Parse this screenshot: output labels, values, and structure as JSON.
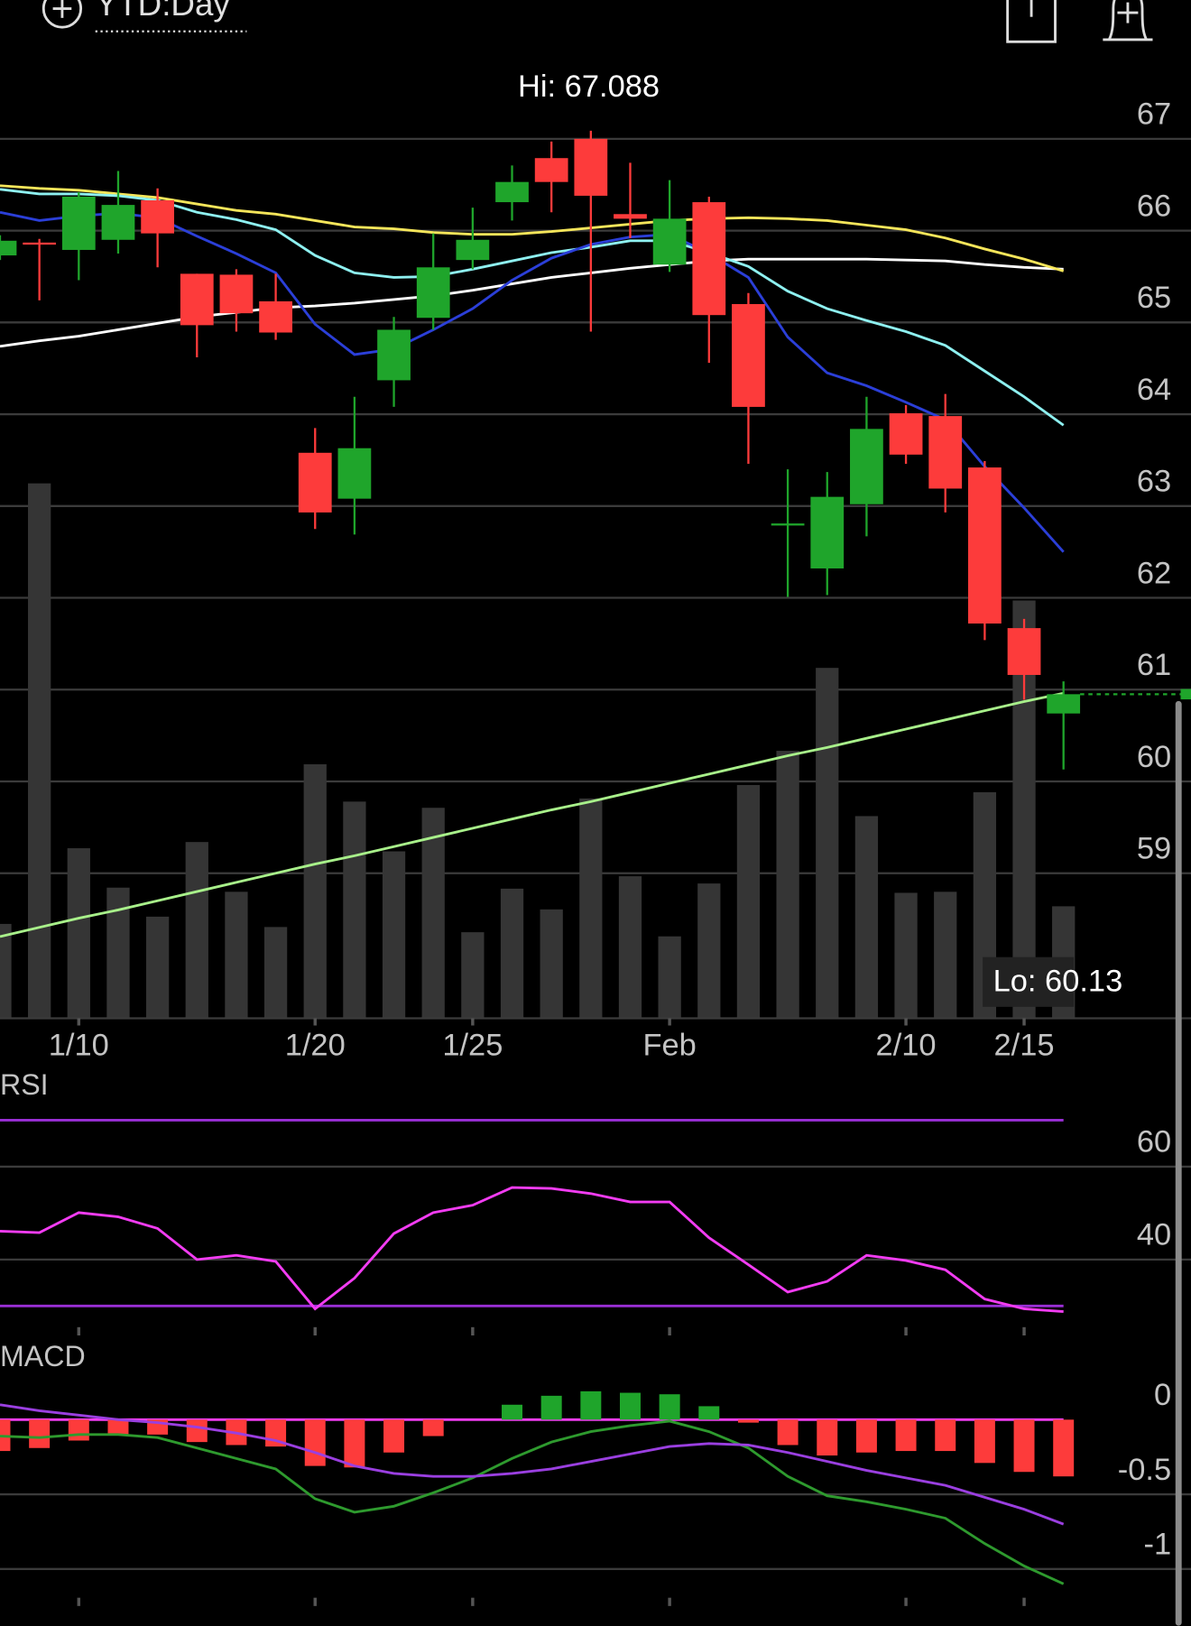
{
  "header": {
    "range": "YTD:Day"
  },
  "chart_data": [
    {
      "type": "candlestick",
      "categories": [
        null,
        null,
        "1/10",
        null,
        null,
        null,
        null,
        null,
        "1/20",
        null,
        null,
        null,
        "1/25",
        null,
        null,
        null,
        null,
        "Feb",
        null,
        null,
        null,
        null,
        null,
        "2/10",
        null,
        null,
        "2/15",
        null
      ],
      "open": [
        65.73,
        65.87,
        65.79,
        65.9,
        66.33,
        65.53,
        65.52,
        65.23,
        63.58,
        63.08,
        64.37,
        65.05,
        65.68,
        66.31,
        66.79,
        67.0,
        66.18,
        65.63,
        66.31,
        65.2,
        62.79,
        62.32,
        63.02,
        64.01,
        63.98,
        63.42,
        61.67,
        60.74
      ],
      "high": [
        65.95,
        65.91,
        66.42,
        66.65,
        66.46,
        65.53,
        65.58,
        65.53,
        63.85,
        64.19,
        65.06,
        65.97,
        66.25,
        66.71,
        66.97,
        67.088,
        66.74,
        66.55,
        66.37,
        65.32,
        63.4,
        63.37,
        64.19,
        64.1,
        64.22,
        63.49,
        61.77,
        61.09
      ],
      "low": [
        65.68,
        65.24,
        65.46,
        65.75,
        65.6,
        64.62,
        64.9,
        64.81,
        62.75,
        62.69,
        64.08,
        64.92,
        65.58,
        66.11,
        66.2,
        64.9,
        65.92,
        65.55,
        64.56,
        63.46,
        62.01,
        62.03,
        62.67,
        63.46,
        62.93,
        61.54,
        60.89,
        60.13
      ],
      "close": [
        65.89,
        65.86,
        66.37,
        66.28,
        65.97,
        64.97,
        65.1,
        64.89,
        62.93,
        63.63,
        64.92,
        65.6,
        65.9,
        66.53,
        66.53,
        66.38,
        66.13,
        66.13,
        65.08,
        64.08,
        62.81,
        63.1,
        63.84,
        63.56,
        63.19,
        61.72,
        61.16,
        60.95
      ],
      "up_color": "#1fa52b",
      "down_color": "#fd3b3b",
      "volume": [
        91,
        516,
        164,
        126,
        98,
        170,
        122,
        88,
        245,
        209,
        161,
        203,
        83,
        125,
        105,
        212,
        137,
        79,
        130,
        225,
        258,
        338,
        195,
        121,
        122,
        218,
        403,
        108
      ],
      "volume_color": "#353535",
      "vlim": [
        0,
        882
      ],
      "overlays": [
        {
          "color": "#ffffff",
          "values": [
            64.74,
            64.8,
            64.85,
            64.92,
            64.99,
            65.06,
            65.11,
            65.16,
            65.18,
            65.21,
            65.25,
            65.29,
            65.35,
            65.42,
            65.49,
            65.54,
            65.59,
            65.63,
            65.67,
            65.69,
            65.69,
            65.69,
            65.69,
            65.68,
            65.67,
            65.63,
            65.6,
            65.58
          ]
        },
        {
          "color": "#f5e55a",
          "values": [
            66.49,
            66.46,
            66.44,
            66.4,
            66.36,
            66.29,
            66.22,
            66.18,
            66.11,
            66.04,
            66.02,
            65.98,
            65.96,
            65.96,
            65.99,
            66.03,
            66.07,
            66.11,
            66.13,
            66.14,
            66.13,
            66.11,
            66.06,
            66.01,
            65.92,
            65.8,
            65.69,
            65.56
          ]
        },
        {
          "color": "#8ef0f0",
          "values": [
            66.45,
            66.4,
            66.4,
            66.38,
            66.33,
            66.2,
            66.12,
            66.01,
            65.73,
            65.54,
            65.49,
            65.5,
            65.58,
            65.67,
            65.76,
            65.82,
            65.89,
            65.89,
            65.76,
            65.61,
            65.34,
            65.15,
            65.02,
            64.9,
            64.75,
            64.47,
            64.19,
            63.88
          ]
        },
        {
          "color": "#2b3fd8",
          "values": [
            66.2,
            66.11,
            66.16,
            66.19,
            66.14,
            65.94,
            65.75,
            65.54,
            64.98,
            64.65,
            64.71,
            64.92,
            65.15,
            65.46,
            65.7,
            65.85,
            65.93,
            65.96,
            65.75,
            65.49,
            64.84,
            64.45,
            64.31,
            64.13,
            63.94,
            63.43,
            62.98,
            62.5
          ]
        },
        {
          "color": "#a8f08a",
          "values": [
            58.31,
            58.41,
            58.51,
            58.6,
            58.7,
            58.8,
            58.9,
            59.0,
            59.1,
            59.19,
            59.29,
            59.39,
            59.49,
            59.59,
            59.69,
            59.78,
            59.88,
            59.98,
            60.08,
            60.18,
            60.28,
            60.37,
            60.47,
            60.57,
            60.67,
            60.77,
            60.87,
            60.96
          ]
        }
      ],
      "high_label": "Hi: 67.088",
      "low_label": "Lo: 60.13",
      "ylim": [
        57.42,
        67.38
      ],
      "yticks": [
        59,
        60,
        61,
        62,
        63,
        64,
        65,
        66,
        67
      ]
    },
    {
      "type": "line",
      "title": "RSI",
      "series": [
        {
          "color": "#f23cf2",
          "values": [
            46.1,
            45.8,
            50.1,
            49.2,
            46.7,
            40.0,
            40.9,
            39.6,
            29.4,
            36.0,
            45.6,
            50.1,
            51.7,
            55.5,
            55.3,
            54.2,
            52.4,
            52.4,
            44.7,
            38.9,
            33.0,
            35.3,
            40.9,
            39.8,
            37.8,
            31.5,
            29.4,
            28.8
          ]
        }
      ],
      "levels": [
        70,
        30
      ],
      "level_color": "#9a2fd6",
      "ylim": [
        25,
        79
      ],
      "yticks": [
        40,
        60
      ]
    },
    {
      "type": "macd",
      "title": "MACD",
      "histogram": [
        -0.21,
        -0.19,
        -0.14,
        -0.1,
        -0.1,
        -0.15,
        -0.17,
        -0.18,
        -0.31,
        -0.32,
        -0.22,
        -0.11,
        0,
        0.1,
        0.16,
        0.19,
        0.18,
        0.17,
        0.09,
        -0.02,
        -0.17,
        -0.24,
        -0.22,
        -0.21,
        -0.21,
        -0.29,
        -0.35,
        -0.38
      ],
      "up_color": "#1fa52b",
      "down_color": "#fd3b3b",
      "zero_color": "#f23cf2",
      "series": [
        {
          "color": "#2e9a2e",
          "values": [
            -0.11,
            -0.12,
            -0.1,
            -0.1,
            -0.12,
            -0.19,
            -0.26,
            -0.33,
            -0.53,
            -0.62,
            -0.58,
            -0.49,
            -0.39,
            -0.26,
            -0.15,
            -0.08,
            -0.04,
            -0.01,
            -0.08,
            -0.19,
            -0.38,
            -0.51,
            -0.55,
            -0.6,
            -0.66,
            -0.83,
            -0.98,
            -1.1
          ]
        },
        {
          "color": "#9a3fe0",
          "values": [
            0.1,
            0.06,
            0.03,
            0,
            -0.02,
            -0.05,
            -0.09,
            -0.14,
            -0.22,
            -0.31,
            -0.36,
            -0.38,
            -0.38,
            -0.36,
            -0.33,
            -0.28,
            -0.23,
            -0.18,
            -0.16,
            -0.17,
            -0.22,
            -0.28,
            -0.34,
            -0.39,
            -0.44,
            -0.52,
            -0.6,
            -0.7
          ]
        }
      ],
      "ylim": [
        -1.38,
        0.55
      ],
      "yticks": [
        0,
        -0.5,
        -1
      ]
    }
  ]
}
